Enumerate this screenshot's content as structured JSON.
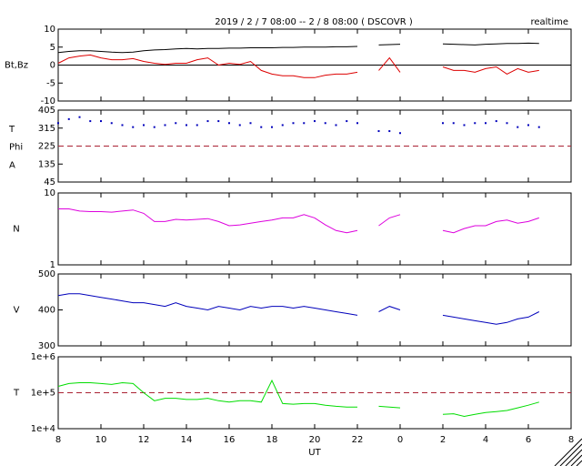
{
  "title": "2019 / 2 / 7  08:00 -- 2 / 8  08:00 ( DSCOVR )",
  "mode": "realtime",
  "xlabel": "UT",
  "xlim": [
    8,
    32
  ],
  "xticks": [
    8,
    10,
    12,
    14,
    16,
    18,
    20,
    22,
    {
      "value": 24,
      "label": "0"
    },
    {
      "value": 26,
      "label": "2"
    },
    {
      "value": 28,
      "label": "4"
    },
    {
      "value": 30,
      "label": "6"
    },
    {
      "value": 32,
      "label": "8"
    }
  ],
  "chart_data": [
    {
      "type": "line",
      "ylabel": "Bt,Bz",
      "ylim": [
        -10,
        10
      ],
      "yticks": [
        -10,
        -5,
        0,
        5,
        10
      ],
      "reference_line": 0,
      "reference_color": "#000000",
      "reference_dashed": false,
      "x": [
        8,
        8.5,
        9,
        9.5,
        10,
        10.5,
        11,
        11.5,
        12,
        12.5,
        13,
        13.5,
        14,
        14.5,
        15,
        15.5,
        16,
        16.5,
        17,
        17.5,
        18,
        18.5,
        19,
        19.5,
        20,
        20.5,
        21,
        21.5,
        22,
        22.5,
        23,
        23.5,
        24,
        24.5,
        25,
        25.5,
        26,
        26.5,
        27,
        27.5,
        28,
        28.5,
        29,
        29.5,
        30,
        30.5,
        31
      ],
      "series": [
        {
          "name": "Bt",
          "color": "#000000",
          "values": [
            3.5,
            3.8,
            4,
            4,
            3.8,
            3.6,
            3.5,
            3.6,
            4,
            4.2,
            4.3,
            4.5,
            4.6,
            4.5,
            4.6,
            4.6,
            4.7,
            4.7,
            4.8,
            4.8,
            4.8,
            4.9,
            4.9,
            5,
            5,
            5,
            5.1,
            5.1,
            5.2,
            null,
            5.6,
            5.7,
            5.8,
            null,
            null,
            null,
            5.9,
            5.8,
            5.7,
            5.6,
            5.8,
            5.9,
            6,
            6,
            6.1,
            6,
            null
          ]
        },
        {
          "name": "Bz",
          "color": "#dd0000",
          "values": [
            0.5,
            2,
            2.5,
            2.8,
            2,
            1.5,
            1.5,
            1.8,
            1,
            0.5,
            0.2,
            0.5,
            0.5,
            1.5,
            2,
            0,
            0.5,
            0.2,
            1,
            -1.5,
            -2.5,
            -3,
            -3,
            -3.5,
            -3.5,
            -2.8,
            -2.5,
            -2.5,
            -2,
            null,
            -1.5,
            2,
            -2,
            null,
            null,
            null,
            -0.5,
            -1.5,
            -1.5,
            -2,
            -1,
            -0.5,
            -2.5,
            -1,
            -2,
            -1.5,
            null
          ]
        }
      ]
    },
    {
      "type": "scatter",
      "ylabel_parts": [
        "T",
        "Phi",
        "A"
      ],
      "ylim": [
        45,
        405
      ],
      "yticks": [
        45,
        135,
        225,
        315,
        405
      ],
      "reference_line": 225,
      "reference_color": "#aa2233",
      "reference_dashed": true,
      "x": [
        8,
        8.5,
        9,
        9.5,
        10,
        10.5,
        11,
        11.5,
        12,
        12.5,
        13,
        13.5,
        14,
        14.5,
        15,
        15.5,
        16,
        16.5,
        17,
        17.5,
        18,
        18.5,
        19,
        19.5,
        20,
        20.5,
        21,
        21.5,
        22,
        22.5,
        23,
        23.5,
        24,
        24.5,
        25,
        25.5,
        26,
        26.5,
        27,
        27.5,
        28,
        28.5,
        29,
        29.5,
        30,
        30.5,
        31
      ],
      "series": [
        {
          "name": "Phi",
          "color": "#0000bb",
          "values": [
            340,
            360,
            370,
            350,
            350,
            340,
            330,
            320,
            330,
            320,
            330,
            340,
            330,
            330,
            350,
            350,
            340,
            330,
            340,
            320,
            320,
            330,
            340,
            340,
            350,
            340,
            330,
            350,
            340,
            null,
            300,
            300,
            290,
            null,
            null,
            null,
            340,
            340,
            330,
            340,
            340,
            350,
            340,
            320,
            330,
            320,
            null
          ]
        }
      ]
    },
    {
      "type": "line",
      "ylabel": "N",
      "log": true,
      "ylim": [
        1,
        10
      ],
      "yticks": [
        1,
        10
      ],
      "x": [
        8,
        8.5,
        9,
        9.5,
        10,
        10.5,
        11,
        11.5,
        12,
        12.5,
        13,
        13.5,
        14,
        14.5,
        15,
        15.5,
        16,
        16.5,
        17,
        17.5,
        18,
        18.5,
        19,
        19.5,
        20,
        20.5,
        21,
        21.5,
        22,
        22.5,
        23,
        23.5,
        24,
        24.5,
        25,
        25.5,
        26,
        26.5,
        27,
        27.5,
        28,
        28.5,
        29,
        29.5,
        30,
        30.5,
        31
      ],
      "series": [
        {
          "name": "N",
          "color": "#dd00dd",
          "values": [
            6,
            6,
            5.6,
            5.5,
            5.5,
            5.4,
            5.6,
            5.8,
            5.2,
            4,
            4,
            4.3,
            4.2,
            4.3,
            4.4,
            4,
            3.5,
            3.6,
            3.8,
            4,
            4.2,
            4.5,
            4.5,
            5,
            4.5,
            3.6,
            3,
            2.8,
            3,
            null,
            3.5,
            4.5,
            5,
            null,
            null,
            null,
            3,
            2.8,
            3.2,
            3.5,
            3.5,
            4,
            4.2,
            3.8,
            4,
            4.5,
            null
          ]
        }
      ]
    },
    {
      "type": "line",
      "ylabel": "V",
      "ylim": [
        300,
        500
      ],
      "yticks": [
        300,
        400,
        500
      ],
      "x": [
        8,
        8.5,
        9,
        9.5,
        10,
        10.5,
        11,
        11.5,
        12,
        12.5,
        13,
        13.5,
        14,
        14.5,
        15,
        15.5,
        16,
        16.5,
        17,
        17.5,
        18,
        18.5,
        19,
        19.5,
        20,
        20.5,
        21,
        21.5,
        22,
        22.5,
        23,
        23.5,
        24,
        24.5,
        25,
        25.5,
        26,
        26.5,
        27,
        27.5,
        28,
        28.5,
        29,
        29.5,
        30,
        30.5,
        31
      ],
      "series": [
        {
          "name": "V",
          "color": "#0000bb",
          "values": [
            440,
            445,
            445,
            440,
            435,
            430,
            425,
            420,
            420,
            415,
            410,
            420,
            410,
            405,
            400,
            410,
            405,
            400,
            410,
            405,
            410,
            410,
            405,
            410,
            405,
            400,
            395,
            390,
            385,
            null,
            395,
            410,
            400,
            null,
            null,
            null,
            385,
            380,
            375,
            370,
            365,
            360,
            365,
            375,
            380,
            395,
            null
          ]
        }
      ]
    },
    {
      "type": "line",
      "ylabel": "T",
      "log": true,
      "ylim": [
        10000,
        1000000
      ],
      "yticks": [
        {
          "value": 10000,
          "label": "1e+4"
        },
        {
          "value": 100000,
          "label": "1e+5"
        },
        {
          "value": 1000000,
          "label": "1e+6"
        }
      ],
      "reference_line": 100000,
      "reference_color": "#aa2233",
      "reference_dashed": true,
      "x": [
        8,
        8.5,
        9,
        9.5,
        10,
        10.5,
        11,
        11.5,
        12,
        12.5,
        13,
        13.5,
        14,
        14.5,
        15,
        15.5,
        16,
        16.5,
        17,
        17.5,
        18,
        18.5,
        19,
        19.5,
        20,
        20.5,
        21,
        21.5,
        22,
        22.5,
        23,
        23.5,
        24,
        24.5,
        25,
        25.5,
        26,
        26.5,
        27,
        27.5,
        28,
        28.5,
        29,
        29.5,
        30,
        30.5,
        31
      ],
      "series": [
        {
          "name": "T",
          "color": "#00dd00",
          "values": [
            150000,
            180000,
            190000,
            190000,
            180000,
            170000,
            190000,
            180000,
            100000,
            60000,
            70000,
            70000,
            65000,
            65000,
            70000,
            60000,
            55000,
            60000,
            60000,
            55000,
            220000,
            50000,
            48000,
            50000,
            50000,
            45000,
            42000,
            40000,
            40000,
            null,
            42000,
            40000,
            38000,
            null,
            null,
            null,
            25000,
            26000,
            22000,
            25000,
            28000,
            30000,
            32000,
            38000,
            45000,
            55000,
            null
          ]
        }
      ]
    }
  ]
}
